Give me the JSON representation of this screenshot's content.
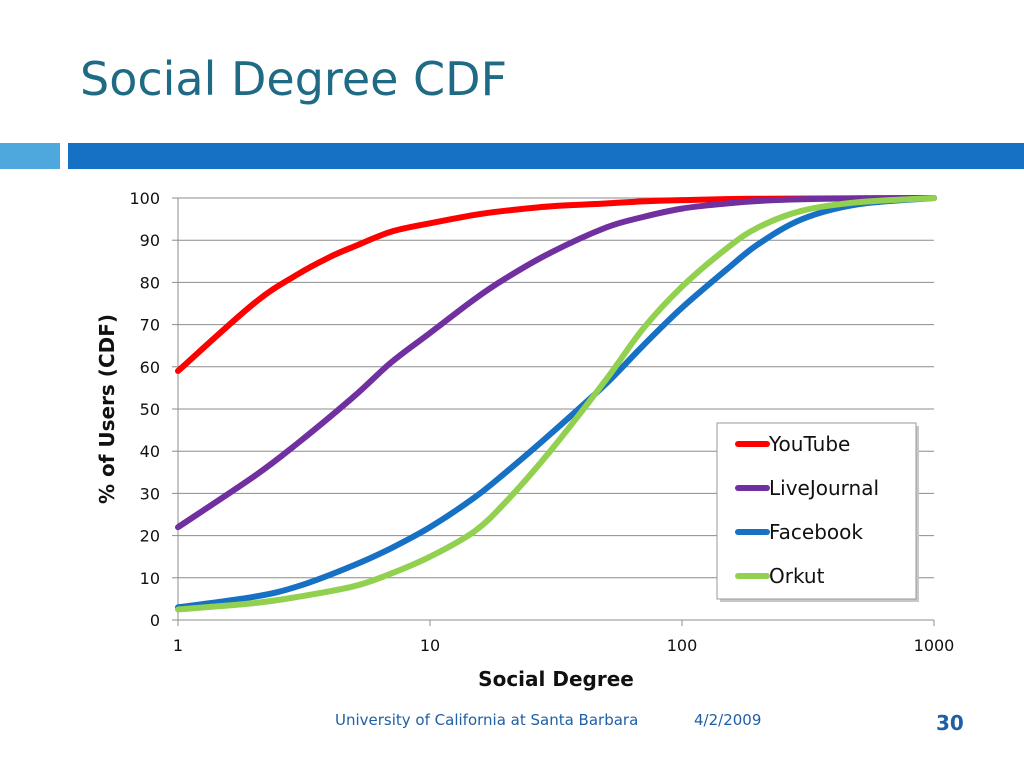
{
  "slide": {
    "title": "Social Degree CDF",
    "footer_left": "University of California at Santa Barbara",
    "footer_date": "4/2/2009",
    "page_number": "30"
  },
  "chart_data": {
    "type": "line",
    "xlabel": "Social Degree",
    "ylabel": "% of Users (CDF)",
    "x_scale": "log",
    "xlim": [
      1,
      1000
    ],
    "ylim": [
      0,
      100
    ],
    "x_ticks": [
      "1",
      "10",
      "100",
      "1000"
    ],
    "y_ticks": [
      "0",
      "10",
      "20",
      "30",
      "40",
      "50",
      "60",
      "70",
      "80",
      "90",
      "100"
    ],
    "grid": true,
    "legend_position": "bottom-right",
    "series": [
      {
        "name": "YouTube",
        "color": "#ff0000",
        "x": [
          1,
          2,
          3,
          4,
          5,
          7,
          10,
          15,
          20,
          30,
          50,
          70,
          100,
          200,
          1000
        ],
        "y": [
          59,
          75,
          82,
          86,
          88.5,
          92,
          94,
          96,
          97,
          98,
          98.7,
          99.2,
          99.5,
          99.8,
          100
        ]
      },
      {
        "name": "LiveJournal",
        "color": "#7030a0",
        "x": [
          1,
          2,
          3,
          5,
          7,
          10,
          15,
          20,
          30,
          50,
          70,
          100,
          150,
          200,
          300,
          500,
          1000
        ],
        "y": [
          22,
          34,
          42,
          53,
          61,
          68,
          76,
          81,
          87,
          93,
          95.5,
          97.5,
          98.7,
          99.3,
          99.7,
          99.9,
          100
        ]
      },
      {
        "name": "Facebook",
        "color": "#1670c4",
        "x": [
          1,
          2,
          3,
          5,
          7,
          10,
          15,
          20,
          30,
          50,
          70,
          100,
          150,
          200,
          300,
          500,
          1000
        ],
        "y": [
          3,
          5.5,
          8,
          13,
          17,
          22,
          29,
          35,
          44,
          56,
          65,
          74,
          83,
          89,
          95,
          98.5,
          100
        ]
      },
      {
        "name": "Orkut",
        "color": "#92d050",
        "x": [
          1,
          2,
          3,
          5,
          7,
          10,
          15,
          20,
          30,
          50,
          70,
          100,
          150,
          200,
          300,
          500,
          1000
        ],
        "y": [
          2.5,
          4,
          5.5,
          8,
          11,
          15,
          21,
          28,
          40,
          57,
          69,
          79,
          88,
          93,
          97,
          99,
          100
        ]
      }
    ]
  }
}
